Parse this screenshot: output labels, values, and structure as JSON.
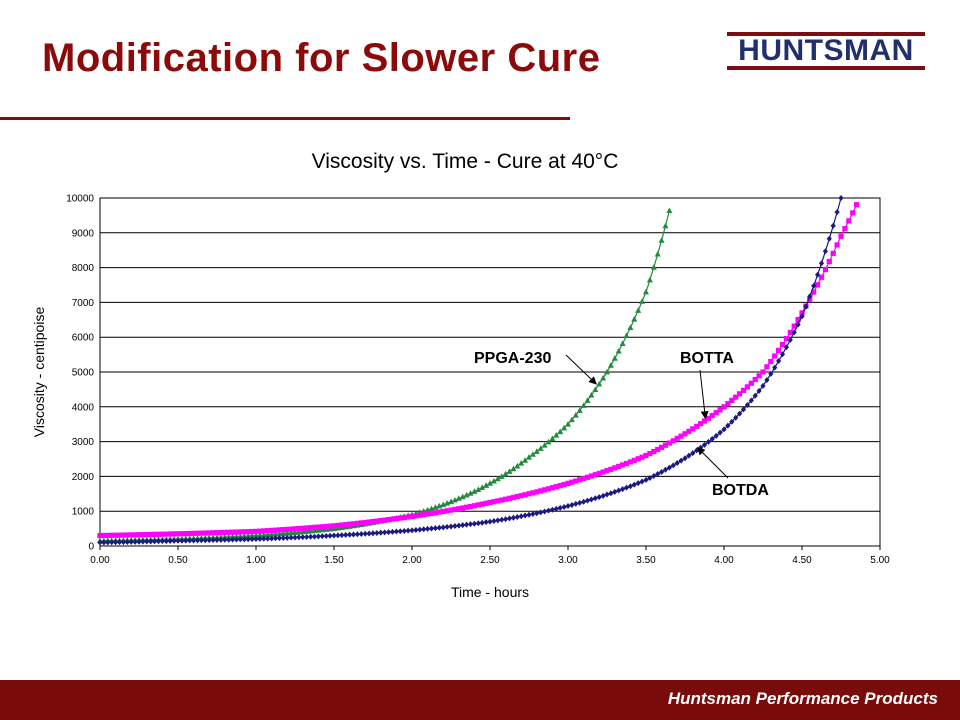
{
  "slide": {
    "title": "Modification for Slower Cure",
    "logo_text": "HUNTSMAN",
    "footer_text": "Huntsman Performance Products"
  },
  "chart_data": {
    "type": "scatter",
    "title": "Viscosity vs. Time - Cure at 40°C",
    "xlabel": "Time - hours",
    "ylabel": "Viscosity - centipoise",
    "xlim": [
      0,
      5
    ],
    "ylim": [
      0,
      10000
    ],
    "x_ticks": [
      "0.00",
      "0.50",
      "1.00",
      "1.50",
      "2.00",
      "2.50",
      "3.00",
      "3.50",
      "4.00",
      "4.50",
      "5.00"
    ],
    "y_ticks": [
      "0",
      "1000",
      "2000",
      "3000",
      "4000",
      "5000",
      "6000",
      "7000",
      "8000",
      "9000",
      "10000"
    ],
    "grid": "horizontal",
    "series": [
      {
        "name": "PPGA-230",
        "color": "#228b3c",
        "marker": "triangle",
        "x": [
          0.0,
          0.5,
          1.0,
          1.5,
          2.0,
          2.5,
          2.75,
          3.0,
          3.25,
          3.5,
          3.67
        ],
        "y": [
          150,
          200,
          300,
          500,
          900,
          1800,
          2550,
          3500,
          5000,
          7300,
          10000
        ]
      },
      {
        "name": "BOTTA",
        "color": "#ff00ff",
        "marker": "square",
        "x": [
          0.0,
          0.5,
          1.0,
          1.5,
          2.0,
          2.5,
          3.0,
          3.5,
          4.0,
          4.25,
          4.5,
          4.75,
          4.87
        ],
        "y": [
          300,
          350,
          420,
          580,
          850,
          1250,
          1800,
          2600,
          4000,
          5000,
          6700,
          8900,
          10000
        ]
      },
      {
        "name": "BOTDA",
        "color": "#1a1a80",
        "marker": "diamond",
        "x": [
          0.0,
          0.5,
          1.0,
          1.5,
          2.0,
          2.5,
          3.0,
          3.5,
          4.0,
          4.25,
          4.5,
          4.75
        ],
        "y": [
          100,
          150,
          200,
          300,
          450,
          700,
          1150,
          1900,
          3350,
          4600,
          6600,
          10000
        ]
      }
    ],
    "annotations": [
      {
        "text": "PPGA-230",
        "series": "PPGA-230",
        "x": 3.2,
        "y": 5500
      },
      {
        "text": "BOTTA",
        "series": "BOTTA",
        "x": 3.9,
        "y": 4200
      },
      {
        "text": "BOTDA",
        "series": "BOTDA",
        "x": 3.85,
        "y": 2600
      }
    ]
  }
}
